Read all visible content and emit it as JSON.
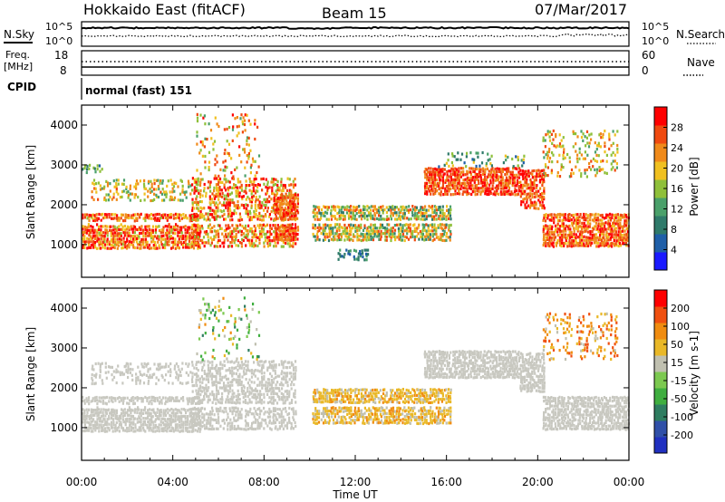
{
  "header": {
    "radar_title": "Hokkaido East (fitACF)",
    "beam": "Beam 15",
    "date": "07/Mar/2017"
  },
  "status_panels": {
    "sky_label": "N.Sky",
    "search_label": "N.Search",
    "noise_ticks_left": [
      "10^5",
      "10^0"
    ],
    "noise_ticks_right": [
      "10^5",
      "10^0"
    ],
    "freq_label_line1": "Freq.",
    "freq_label_line2": "[MHz]",
    "freq_ticks": [
      "18",
      "8"
    ],
    "nave_label": "Nave",
    "nave_ticks": [
      "60",
      "0"
    ],
    "cpid_label": "CPID",
    "cpid_text": "normal (fast) 151"
  },
  "colors": {
    "power_scale": [
      "#1a1aff",
      "#1f5fa8",
      "#2f7a6a",
      "#4aa06a",
      "#8fc03a",
      "#f0c020",
      "#f08a1a",
      "#f04a10",
      "#ff0000"
    ],
    "velocity_scale": [
      "#2030c0",
      "#3050a8",
      "#2e7d60",
      "#3fae3f",
      "#7cc950",
      "#c0c0b0",
      "#e9b828",
      "#f08c10",
      "#f05010",
      "#ff0000"
    ],
    "ground_scatter": "#c8c8c0"
  },
  "chart_data": [
    {
      "type": "heatmap",
      "name": "power",
      "xlabel": "Time UT",
      "ylabel": "Slant Range [km]",
      "x_ticks": [
        "00:00",
        "04:00",
        "08:00",
        "12:00",
        "16:00",
        "20:00",
        "00:00"
      ],
      "y_ticks": [
        "1000",
        "2000",
        "3000",
        "4000"
      ],
      "xlim_hours": [
        0,
        24
      ],
      "ylim_km": [
        180,
        4500
      ],
      "colorbar": {
        "label": "Power [dB]",
        "ticks": [
          "28",
          "24",
          "20",
          "16",
          "12",
          "8",
          "4"
        ],
        "range": [
          0,
          30
        ]
      },
      "bands": [
        {
          "start_h": 0.0,
          "end_h": 5.2,
          "r_lo": 900,
          "r_hi": 1800,
          "v_lo": 16,
          "v_hi": 30,
          "density": 0.9
        },
        {
          "start_h": 0.4,
          "end_h": 4.8,
          "r_lo": 2100,
          "r_hi": 2650,
          "v_lo": 10,
          "v_hi": 24,
          "density": 0.35
        },
        {
          "start_h": 0.0,
          "end_h": 1.0,
          "r_lo": 2800,
          "r_hi": 3050,
          "v_lo": 6,
          "v_hi": 16,
          "density": 0.55
        },
        {
          "start_h": 4.8,
          "end_h": 9.4,
          "r_lo": 950,
          "r_hi": 2700,
          "v_lo": 14,
          "v_hi": 30,
          "density": 0.6
        },
        {
          "start_h": 5.0,
          "end_h": 7.8,
          "r_lo": 2700,
          "r_hi": 4300,
          "v_lo": 10,
          "v_hi": 28,
          "density": 0.2
        },
        {
          "start_h": 8.4,
          "end_h": 9.5,
          "r_lo": 1100,
          "r_hi": 2300,
          "v_lo": 20,
          "v_hi": 30,
          "density": 0.85
        },
        {
          "start_h": 10.1,
          "end_h": 16.2,
          "r_lo": 1100,
          "r_hi": 2000,
          "v_lo": 8,
          "v_hi": 26,
          "density": 0.8
        },
        {
          "start_h": 11.2,
          "end_h": 12.6,
          "r_lo": 600,
          "r_hi": 900,
          "v_lo": 4,
          "v_hi": 12,
          "density": 0.5
        },
        {
          "start_h": 15.0,
          "end_h": 19.2,
          "r_lo": 2250,
          "r_hi": 2950,
          "v_lo": 20,
          "v_hi": 30,
          "density": 0.85
        },
        {
          "start_h": 15.5,
          "end_h": 19.5,
          "r_lo": 2950,
          "r_hi": 3350,
          "v_lo": 6,
          "v_hi": 18,
          "density": 0.2
        },
        {
          "start_h": 19.2,
          "end_h": 20.3,
          "r_lo": 1900,
          "r_hi": 2900,
          "v_lo": 20,
          "v_hi": 30,
          "density": 0.75
        },
        {
          "start_h": 20.2,
          "end_h": 24.0,
          "r_lo": 950,
          "r_hi": 1800,
          "v_lo": 18,
          "v_hi": 30,
          "density": 0.85
        },
        {
          "start_h": 20.2,
          "end_h": 23.5,
          "r_lo": 2700,
          "r_hi": 3900,
          "v_lo": 12,
          "v_hi": 26,
          "density": 0.25
        }
      ],
      "blank_line_km": 1550
    },
    {
      "type": "heatmap",
      "name": "velocity",
      "xlabel": "Time UT",
      "ylabel": "Slant Range [km]",
      "x_ticks": [
        "00:00",
        "04:00",
        "08:00",
        "12:00",
        "16:00",
        "20:00",
        "00:00"
      ],
      "y_ticks": [
        "1000",
        "2000",
        "3000",
        "4000"
      ],
      "xlim_hours": [
        0,
        24
      ],
      "ylim_km": [
        180,
        4500
      ],
      "colorbar": {
        "label": "Velocity [m s-1]",
        "ticks": [
          "200",
          "100",
          "50",
          "15",
          "-15",
          "-50",
          "-100",
          "-200"
        ],
        "range": [
          -250,
          250
        ]
      },
      "bands": [
        {
          "start_h": 0.0,
          "end_h": 5.2,
          "r_lo": 900,
          "r_hi": 1800,
          "v_lo": -15,
          "v_hi": 15,
          "density": 0.9,
          "ground": true
        },
        {
          "start_h": 0.4,
          "end_h": 4.8,
          "r_lo": 2100,
          "r_hi": 2650,
          "v_lo": -15,
          "v_hi": 15,
          "density": 0.35,
          "ground": true
        },
        {
          "start_h": 4.8,
          "end_h": 9.4,
          "r_lo": 950,
          "r_hi": 2700,
          "v_lo": -15,
          "v_hi": 15,
          "density": 0.6,
          "ground": true
        },
        {
          "start_h": 5.0,
          "end_h": 7.8,
          "r_lo": 2700,
          "r_hi": 4300,
          "v_lo": -120,
          "v_hi": 120,
          "density": 0.15
        },
        {
          "start_h": 10.1,
          "end_h": 16.2,
          "r_lo": 1100,
          "r_hi": 2000,
          "v_lo": 30,
          "v_hi": 120,
          "density": 0.8
        },
        {
          "start_h": 15.0,
          "end_h": 19.2,
          "r_lo": 2250,
          "r_hi": 2950,
          "v_lo": -15,
          "v_hi": 15,
          "density": 0.85,
          "ground": true
        },
        {
          "start_h": 19.2,
          "end_h": 20.3,
          "r_lo": 1900,
          "r_hi": 2900,
          "v_lo": -15,
          "v_hi": 15,
          "density": 0.75,
          "ground": true
        },
        {
          "start_h": 20.2,
          "end_h": 24.0,
          "r_lo": 950,
          "r_hi": 1800,
          "v_lo": -15,
          "v_hi": 15,
          "density": 0.85,
          "ground": true
        },
        {
          "start_h": 20.2,
          "end_h": 23.5,
          "r_lo": 2700,
          "r_hi": 3900,
          "v_lo": 20,
          "v_hi": 200,
          "density": 0.25
        }
      ],
      "blank_line_km": 1550
    }
  ]
}
